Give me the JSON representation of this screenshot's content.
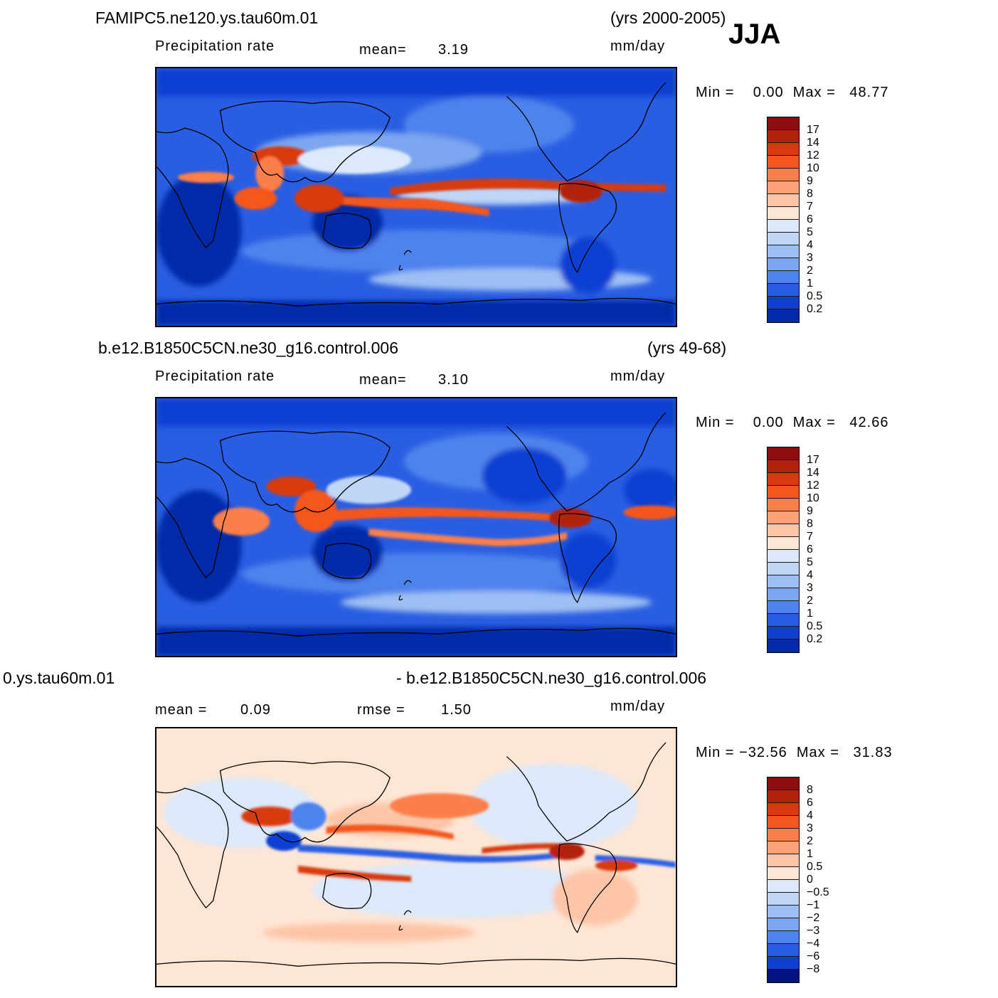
{
  "season": "JJA",
  "panels": [
    {
      "case": "FAMIPC5.ne120.ys.tau60m.01",
      "years": "(yrs 2000-2005)",
      "variable": "Precipitation rate",
      "mean_label": "mean=",
      "mean_value": "3.19",
      "units": "mm/day",
      "minmax": "Min =    0.00  Max =   48.77",
      "levels": [
        "17",
        "14",
        "12",
        "10",
        "9",
        "8",
        "7",
        "6",
        "5",
        "4",
        "3",
        "2",
        "1",
        "0.5",
        "0.2"
      ]
    },
    {
      "case": "b.e12.B1850C5CN.ne30_g16.control.006",
      "years": "(yrs 49-68)",
      "variable": "Precipitation rate",
      "mean_label": "mean=",
      "mean_value": "3.10",
      "units": "mm/day",
      "minmax": "Min =    0.00  Max =   42.66",
      "levels": [
        "17",
        "14",
        "12",
        "10",
        "9",
        "8",
        "7",
        "6",
        "5",
        "4",
        "3",
        "2",
        "1",
        "0.5",
        "0.2"
      ]
    },
    {
      "case_left": "0.ys.tau60m.01",
      "case_right": "- b.e12.B1850C5CN.ne30_g16.control.006",
      "mean_label": "mean =",
      "mean_value": "0.09",
      "rmse_label": "rmse =",
      "rmse_value": "1.50",
      "units": "mm/day",
      "minmax": "Min = −32.56  Max =   31.83",
      "levels": [
        "8",
        "6",
        "4",
        "3",
        "2",
        "1",
        "0.5",
        "0",
        "−0.5",
        "−1",
        "−2",
        "−3",
        "−4",
        "−6",
        "−8"
      ]
    }
  ],
  "colors": {
    "abs_scale": [
      "#8e0d0d",
      "#b3220b",
      "#d83a10",
      "#f4561f",
      "#fb7f48",
      "#fda27a",
      "#fdc5a7",
      "#fee6d5",
      "#dbe9fb",
      "#bfd6f7",
      "#9dbff3",
      "#7ba6ef",
      "#4f83ec",
      "#2a5ee2",
      "#1040d2",
      "#022aa8"
    ],
    "diff_scale": [
      "#8e0d0d",
      "#b3220b",
      "#d83a10",
      "#f4561f",
      "#fb7f48",
      "#fda27a",
      "#fdc5a7",
      "#fee6d5",
      "#dbe9fb",
      "#bfd6f7",
      "#9dbff3",
      "#7ba6ef",
      "#4f83ec",
      "#2a5ee2",
      "#1040d2",
      "#02127e"
    ]
  }
}
